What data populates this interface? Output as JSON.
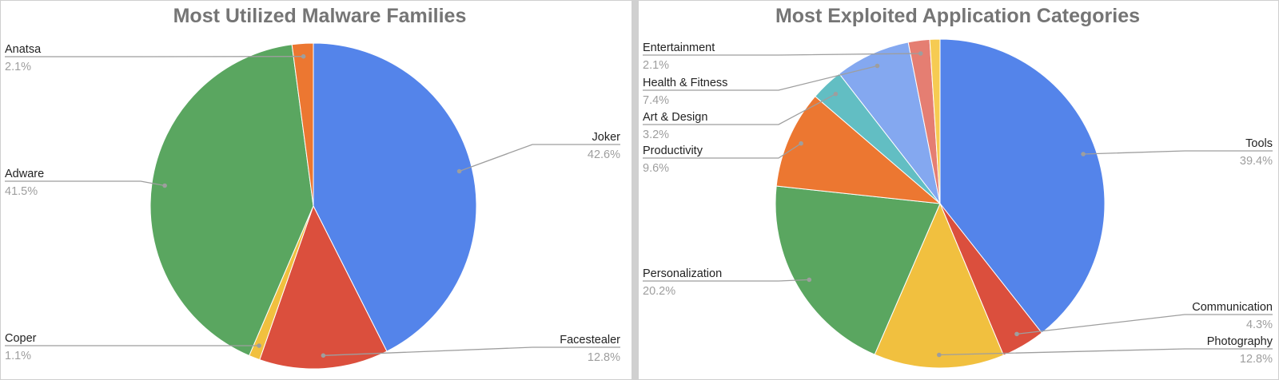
{
  "chart_data": [
    {
      "type": "pie",
      "title": "Most Utilized Malware Families",
      "slices": [
        {
          "name": "Joker",
          "value": 42.6,
          "label": "42.6%",
          "color": "#5484EA"
        },
        {
          "name": "Facestealer",
          "value": 12.8,
          "label": "12.8%",
          "color": "#DB4F3D"
        },
        {
          "name": "Coper",
          "value": 1.1,
          "label": "1.1%",
          "color": "#F1C03F"
        },
        {
          "name": "Adware",
          "value": 41.5,
          "label": "41.5%",
          "color": "#5AA660"
        },
        {
          "name": "Anatsa",
          "value": 2.1,
          "label": "2.1%",
          "color": "#EC7731"
        }
      ]
    },
    {
      "type": "pie",
      "title": "Most Exploited Application Categories",
      "slices": [
        {
          "name": "Tools",
          "value": 39.4,
          "label": "39.4%",
          "color": "#5484EA"
        },
        {
          "name": "Communication",
          "value": 4.3,
          "label": "4.3%",
          "color": "#DB4F3D"
        },
        {
          "name": "Photography",
          "value": 12.8,
          "label": "12.8%",
          "color": "#F1C03F"
        },
        {
          "name": "Personalization",
          "value": 20.2,
          "label": "20.2%",
          "color": "#5AA660"
        },
        {
          "name": "Productivity",
          "value": 9.6,
          "label": "9.6%",
          "color": "#EC7731"
        },
        {
          "name": "Art & Design",
          "value": 3.2,
          "label": "3.2%",
          "color": "#62BEC3"
        },
        {
          "name": "Health & Fitness",
          "value": 7.4,
          "label": "7.4%",
          "color": "#84A8F0"
        },
        {
          "name": "Entertainment",
          "value": 2.1,
          "label": "2.1%",
          "color": "#E57E72"
        },
        {
          "name": "",
          "value": 1.0,
          "label": "",
          "color": "#F6CB52"
        }
      ]
    }
  ]
}
